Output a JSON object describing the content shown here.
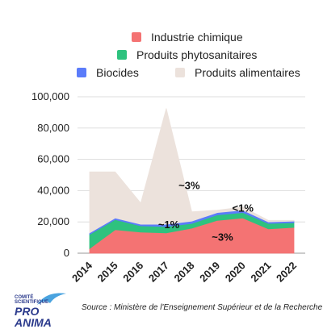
{
  "chart_data": {
    "type": "area",
    "stacked": true,
    "x": [
      "2014",
      "2015",
      "2016",
      "2017",
      "2018",
      "2019",
      "2020",
      "2021",
      "2022"
    ],
    "yticks": [
      "0",
      "20,000",
      "40,000",
      "60,000",
      "80,000",
      "100,000"
    ],
    "ylim": [
      0,
      100000
    ],
    "grid": true,
    "legend_position": "top",
    "series": [
      {
        "name": "Industrie chimique",
        "color": "#f47373",
        "values": [
          3000,
          15000,
          13500,
          13000,
          16000,
          21000,
          22500,
          15500,
          16500
        ]
      },
      {
        "name": "Produits phytosanitaires",
        "color": "#2ec27e",
        "values": [
          9000,
          6500,
          4000,
          4000,
          3000,
          3500,
          3500,
          3500,
          3000
        ]
      },
      {
        "name": "Biocides",
        "color": "#5b7cfa",
        "values": [
          1000,
          1000,
          1000,
          1500,
          1500,
          1500,
          1500,
          1000,
          1000
        ]
      },
      {
        "name": "Produits alimentaires",
        "color": "#ece2dc",
        "values": [
          39000,
          29500,
          13500,
          74000,
          6000,
          1500,
          2000,
          1000,
          500
        ]
      }
    ],
    "annotations": [
      {
        "text": "~3%",
        "x": 2017.9,
        "y": 41000
      },
      {
        "text": "~1%",
        "x": 2017.1,
        "y": 16000
      },
      {
        "text": "~3%",
        "x": 2019.2,
        "y": 8000
      },
      {
        "text": "<1%",
        "x": 2020.0,
        "y": 26500
      }
    ]
  },
  "source": "Source : Ministère de l'Enseignement Supérieur et de la Recherche",
  "logo": {
    "line1": "COMITÉ",
    "line2": "SCIENTIFIQUE",
    "line3": "PRO ANIMA",
    "bird_color": "#4aa3df"
  }
}
